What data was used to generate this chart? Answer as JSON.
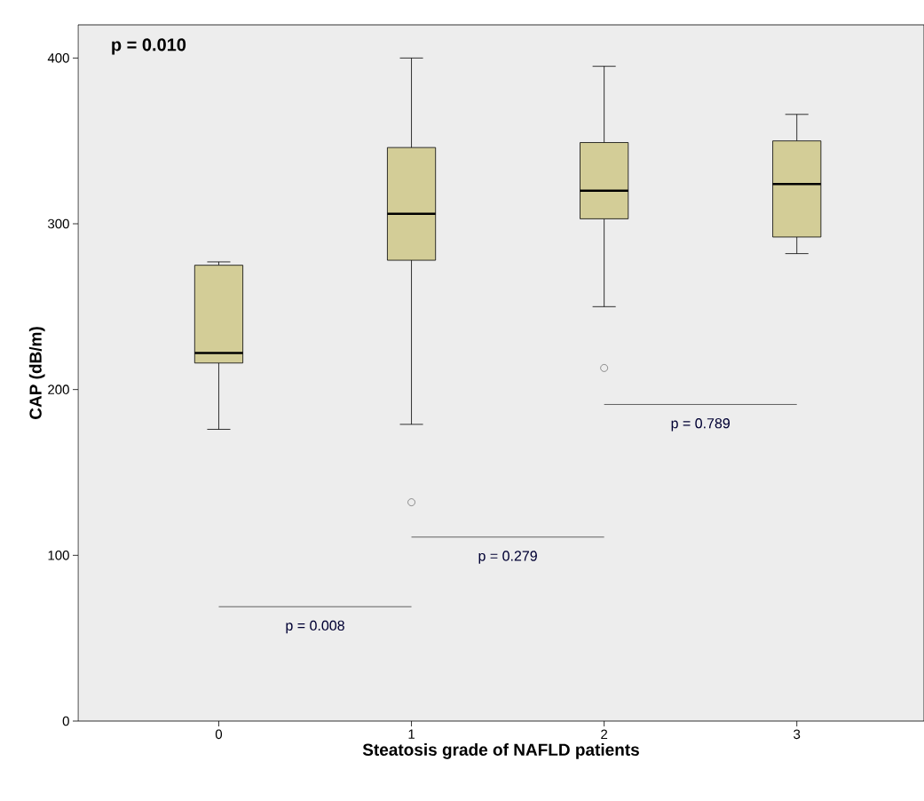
{
  "chart_data": {
    "type": "box",
    "xlabel": "Steatosis grade of NAFLD patients",
    "ylabel": "CAP (dB/m)",
    "categories": [
      "0",
      "1",
      "2",
      "3"
    ],
    "series": [
      {
        "color": "#d3cd97",
        "boxes": [
          {
            "low": 176,
            "q1": 216,
            "median": 222,
            "q3": 275,
            "high": 277
          },
          {
            "low": 179,
            "q1": 278,
            "median": 306,
            "q3": 346,
            "high": 400,
            "outliers": [
              132
            ]
          },
          {
            "low": 250,
            "q1": 303,
            "median": 320,
            "q3": 349,
            "high": 395,
            "outliers": [
              213
            ]
          },
          {
            "low": 282,
            "q1": 292,
            "median": 324,
            "q3": 350,
            "high": 366
          }
        ]
      }
    ],
    "ylim": [
      0,
      420
    ],
    "yticks": [
      0,
      100,
      200,
      300,
      400
    ],
    "grid": false,
    "annotations": [
      "p = 0.010",
      "p = 0.008",
      "p = 0.279",
      "p = 0.789"
    ],
    "ref_lines": [
      {
        "axis": "y",
        "value": 69,
        "color": "#000000"
      },
      {
        "axis": "y",
        "value": 111,
        "color": "#000000"
      },
      {
        "axis": "y",
        "value": 191,
        "color": "#000000"
      }
    ]
  }
}
